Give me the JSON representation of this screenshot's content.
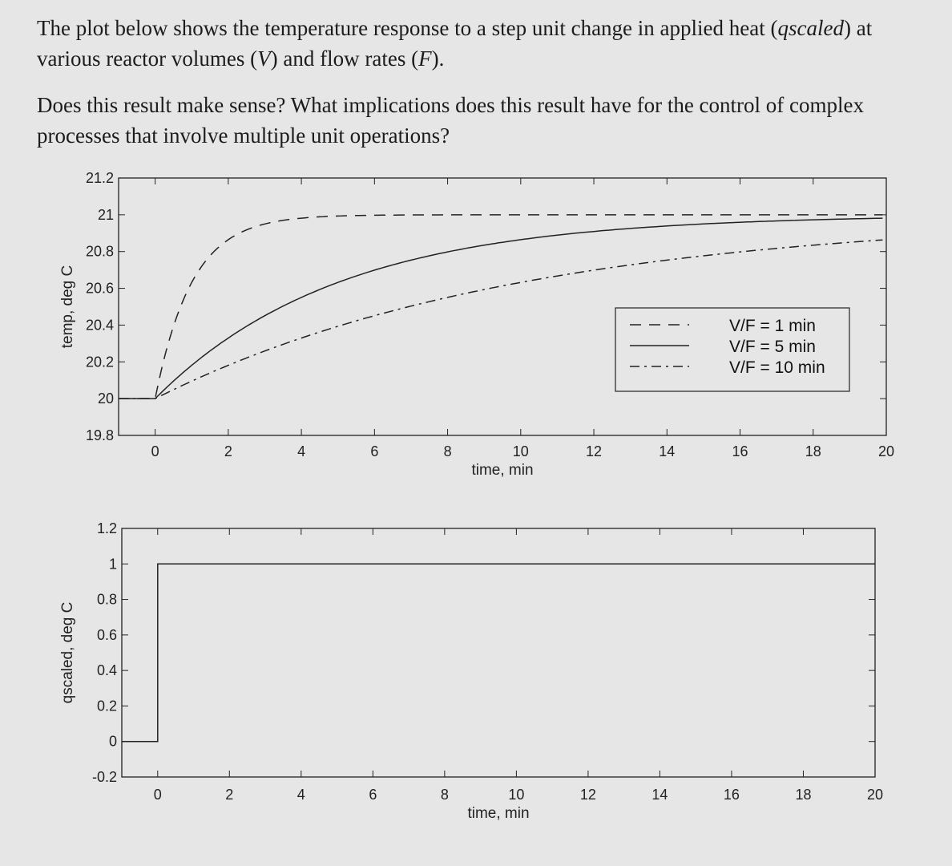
{
  "question": {
    "p1_a": "The plot below shows the temperature response to a step unit change in applied heat (",
    "p1_q": "qscaled",
    "p1_b": ") at various reactor volumes (",
    "p1_v": "V",
    "p1_c": ") and flow rates (",
    "p1_f": "F",
    "p1_d": ").",
    "p2": "Does this result make sense? What implications does this result have for the control of complex processes that involve multiple unit operations?"
  },
  "colors": {
    "line": "#222222",
    "frame": "#222222",
    "background": "#e6e6e6"
  },
  "chart_data": [
    {
      "type": "line",
      "xlabel": "time, min",
      "ylabel": "temp, deg C",
      "xlim": [
        -1,
        20
      ],
      "ylim": [
        19.8,
        21.2
      ],
      "x_ticks": [
        "0",
        "2",
        "4",
        "6",
        "8",
        "10",
        "12",
        "14",
        "16",
        "18",
        "20"
      ],
      "y_ticks": [
        "21.2",
        "21",
        "20.8",
        "20.6",
        "20.4",
        "20.2",
        "20",
        "19.8"
      ],
      "legend_position": "right",
      "series": [
        {
          "name": "V/F = 1 min",
          "style": "dashed",
          "tau": 1,
          "x": [
            -1,
            0,
            0.5,
            1,
            2,
            3,
            4,
            6,
            8,
            20
          ],
          "y": [
            20.0,
            20.0,
            20.39,
            20.63,
            20.86,
            20.95,
            20.98,
            21.0,
            21.0,
            21.0
          ]
        },
        {
          "name": "V/F = 5 min",
          "style": "solid",
          "tau": 5,
          "x": [
            -1,
            0,
            1,
            2,
            4,
            6,
            8,
            10,
            12,
            16,
            20
          ],
          "y": [
            20.0,
            20.0,
            20.18,
            20.33,
            20.55,
            20.7,
            20.8,
            20.86,
            20.91,
            20.96,
            20.98
          ]
        },
        {
          "name": "V/F = 10 min",
          "style": "dashdot",
          "tau": 10,
          "x": [
            -1,
            0,
            2,
            4,
            6,
            8,
            10,
            12,
            16,
            20
          ],
          "y": [
            20.0,
            20.0,
            20.18,
            20.33,
            20.45,
            20.55,
            20.63,
            20.7,
            20.8,
            20.86
          ]
        }
      ]
    },
    {
      "type": "line",
      "xlabel": "time, min",
      "ylabel": "qscaled, deg C",
      "xlim": [
        -1,
        20
      ],
      "ylim": [
        -0.2,
        1.2
      ],
      "x_ticks": [
        "0",
        "2",
        "4",
        "6",
        "8",
        "10",
        "12",
        "14",
        "16",
        "18",
        "20"
      ],
      "y_ticks": [
        "1.2",
        "1",
        "0.8",
        "0.6",
        "0.4",
        "0.2",
        "0",
        "-0.2"
      ],
      "series": [
        {
          "style": "solid",
          "x": [
            -1,
            0,
            0,
            20
          ],
          "y": [
            0,
            0,
            1,
            1
          ]
        }
      ]
    }
  ]
}
